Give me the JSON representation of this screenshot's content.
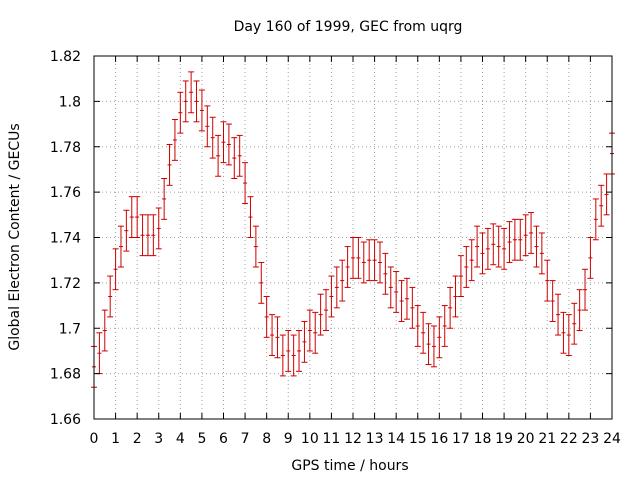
{
  "chart_data": {
    "type": "scatter",
    "style": "errorbars",
    "title": "Day 160 of 1999, GEC from uqrg",
    "xlabel": "GPS time / hours",
    "ylabel": "Global Electron Content / GECUs",
    "xlim": [
      0,
      24
    ],
    "ylim": [
      1.66,
      1.82
    ],
    "grid": true,
    "x_ticks": [
      0,
      1,
      2,
      3,
      4,
      5,
      6,
      7,
      8,
      9,
      10,
      11,
      12,
      13,
      14,
      15,
      16,
      17,
      18,
      19,
      20,
      21,
      22,
      23,
      24
    ],
    "x_tick_labels": [
      "0",
      "1",
      "2",
      "3",
      "4",
      "5",
      "6",
      "7",
      "8",
      "9",
      "10",
      "11",
      "12",
      "13",
      "14",
      "15",
      "16",
      "17",
      "18",
      "19",
      "20",
      "21",
      "22",
      "23",
      "24"
    ],
    "y_ticks": [
      1.66,
      1.68,
      1.7,
      1.72,
      1.74,
      1.76,
      1.78,
      1.8,
      1.82
    ],
    "y_tick_labels": [
      "1.66",
      "1.68",
      "1.7",
      "1.72",
      "1.74",
      "1.76",
      "1.78",
      "1.8",
      "1.82"
    ],
    "series_color": "#cc0000",
    "error": 0.009,
    "x": [
      0.0,
      0.25,
      0.5,
      0.75,
      1.0,
      1.25,
      1.5,
      1.75,
      2.0,
      2.25,
      2.5,
      2.75,
      3.0,
      3.25,
      3.5,
      3.75,
      4.0,
      4.25,
      4.5,
      4.75,
      5.0,
      5.25,
      5.5,
      5.75,
      6.0,
      6.25,
      6.5,
      6.75,
      7.0,
      7.25,
      7.5,
      7.75,
      8.0,
      8.25,
      8.5,
      8.75,
      9.0,
      9.25,
      9.5,
      9.75,
      10.0,
      10.25,
      10.5,
      10.75,
      11.0,
      11.25,
      11.5,
      11.75,
      12.0,
      12.25,
      12.5,
      12.75,
      13.0,
      13.25,
      13.5,
      13.75,
      14.0,
      14.25,
      14.5,
      14.75,
      15.0,
      15.25,
      15.5,
      15.75,
      16.0,
      16.25,
      16.5,
      16.75,
      17.0,
      17.25,
      17.5,
      17.75,
      18.0,
      18.25,
      18.5,
      18.75,
      19.0,
      19.25,
      19.5,
      19.75,
      20.0,
      20.25,
      20.5,
      20.75,
      21.0,
      21.25,
      21.5,
      21.75,
      22.0,
      22.25,
      22.5,
      22.75,
      23.0,
      23.25,
      23.5,
      23.75,
      24.0
    ],
    "values": [
      1.683,
      1.689,
      1.699,
      1.714,
      1.726,
      1.736,
      1.743,
      1.749,
      1.749,
      1.741,
      1.741,
      1.741,
      1.744,
      1.757,
      1.772,
      1.783,
      1.795,
      1.8,
      1.804,
      1.8,
      1.796,
      1.789,
      1.784,
      1.776,
      1.782,
      1.781,
      1.775,
      1.776,
      1.764,
      1.749,
      1.736,
      1.72,
      1.705,
      1.697,
      1.696,
      1.688,
      1.69,
      1.688,
      1.69,
      1.694,
      1.699,
      1.698,
      1.706,
      1.708,
      1.714,
      1.718,
      1.721,
      1.727,
      1.731,
      1.731,
      1.729,
      1.73,
      1.73,
      1.729,
      1.724,
      1.718,
      1.716,
      1.712,
      1.713,
      1.709,
      1.701,
      1.698,
      1.693,
      1.692,
      1.696,
      1.701,
      1.709,
      1.714,
      1.723,
      1.727,
      1.73,
      1.736,
      1.733,
      1.735,
      1.737,
      1.736,
      1.735,
      1.738,
      1.739,
      1.739,
      1.741,
      1.742,
      1.736,
      1.733,
      1.721,
      1.712,
      1.706,
      1.698,
      1.697,
      1.702,
      1.708,
      1.717,
      1.731,
      1.748,
      1.754,
      1.759,
      1.777
    ]
  }
}
